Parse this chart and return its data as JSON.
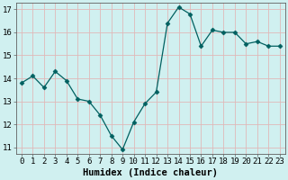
{
  "x": [
    0,
    1,
    2,
    3,
    4,
    5,
    6,
    7,
    8,
    9,
    10,
    11,
    12,
    13,
    14,
    15,
    16,
    17,
    18,
    19,
    20,
    21,
    22,
    23
  ],
  "y": [
    13.8,
    14.1,
    13.6,
    14.3,
    13.9,
    13.1,
    13.0,
    12.4,
    11.5,
    10.9,
    12.1,
    12.9,
    13.4,
    16.4,
    17.1,
    16.8,
    15.4,
    16.1,
    16.0,
    16.0,
    15.5,
    15.6,
    15.4,
    15.4
  ],
  "line_color": "#006060",
  "marker": "D",
  "marker_size": 2.5,
  "bg_color": "#d0f0f0",
  "grid_color": "#e0b8b8",
  "xlabel": "Humidex (Indice chaleur)",
  "ylim": [
    10.7,
    17.3
  ],
  "xlim": [
    -0.5,
    23.5
  ],
  "yticks": [
    11,
    12,
    13,
    14,
    15,
    16,
    17
  ],
  "xticks": [
    0,
    1,
    2,
    3,
    4,
    5,
    6,
    7,
    8,
    9,
    10,
    11,
    12,
    13,
    14,
    15,
    16,
    17,
    18,
    19,
    20,
    21,
    22,
    23
  ],
  "xlabel_fontsize": 7.5,
  "tick_fontsize": 6.5
}
